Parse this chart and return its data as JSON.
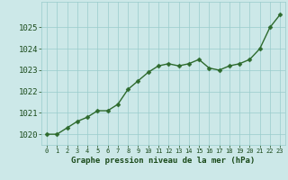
{
  "x": [
    0,
    1,
    2,
    3,
    4,
    5,
    6,
    7,
    8,
    9,
    10,
    11,
    12,
    13,
    14,
    15,
    16,
    17,
    18,
    19,
    20,
    21,
    22,
    23
  ],
  "y": [
    1020.0,
    1020.0,
    1020.3,
    1020.6,
    1020.8,
    1021.1,
    1021.1,
    1021.4,
    1022.1,
    1022.5,
    1022.9,
    1023.2,
    1023.3,
    1023.2,
    1023.3,
    1023.5,
    1023.1,
    1023.0,
    1023.2,
    1023.3,
    1023.5,
    1024.0,
    1025.0,
    1025.6
  ],
  "line_color": "#2d6a2d",
  "marker": "D",
  "marker_size": 2.5,
  "linewidth": 1.0,
  "bg_color": "#cce8e8",
  "grid_color": "#99cccc",
  "xlabel": "Graphe pression niveau de la mer (hPa)",
  "xlabel_color": "#1a4a1a",
  "xlabel_fontsize": 6.5,
  "ylabel_fontsize": 6.5,
  "tick_label_color": "#1a4a1a",
  "ylim": [
    1019.5,
    1026.2
  ],
  "yticks": [
    1020,
    1021,
    1022,
    1023,
    1024,
    1025
  ],
  "xlim": [
    -0.5,
    23.5
  ],
  "xticks": [
    0,
    1,
    2,
    3,
    4,
    5,
    6,
    7,
    8,
    9,
    10,
    11,
    12,
    13,
    14,
    15,
    16,
    17,
    18,
    19,
    20,
    21,
    22,
    23
  ]
}
